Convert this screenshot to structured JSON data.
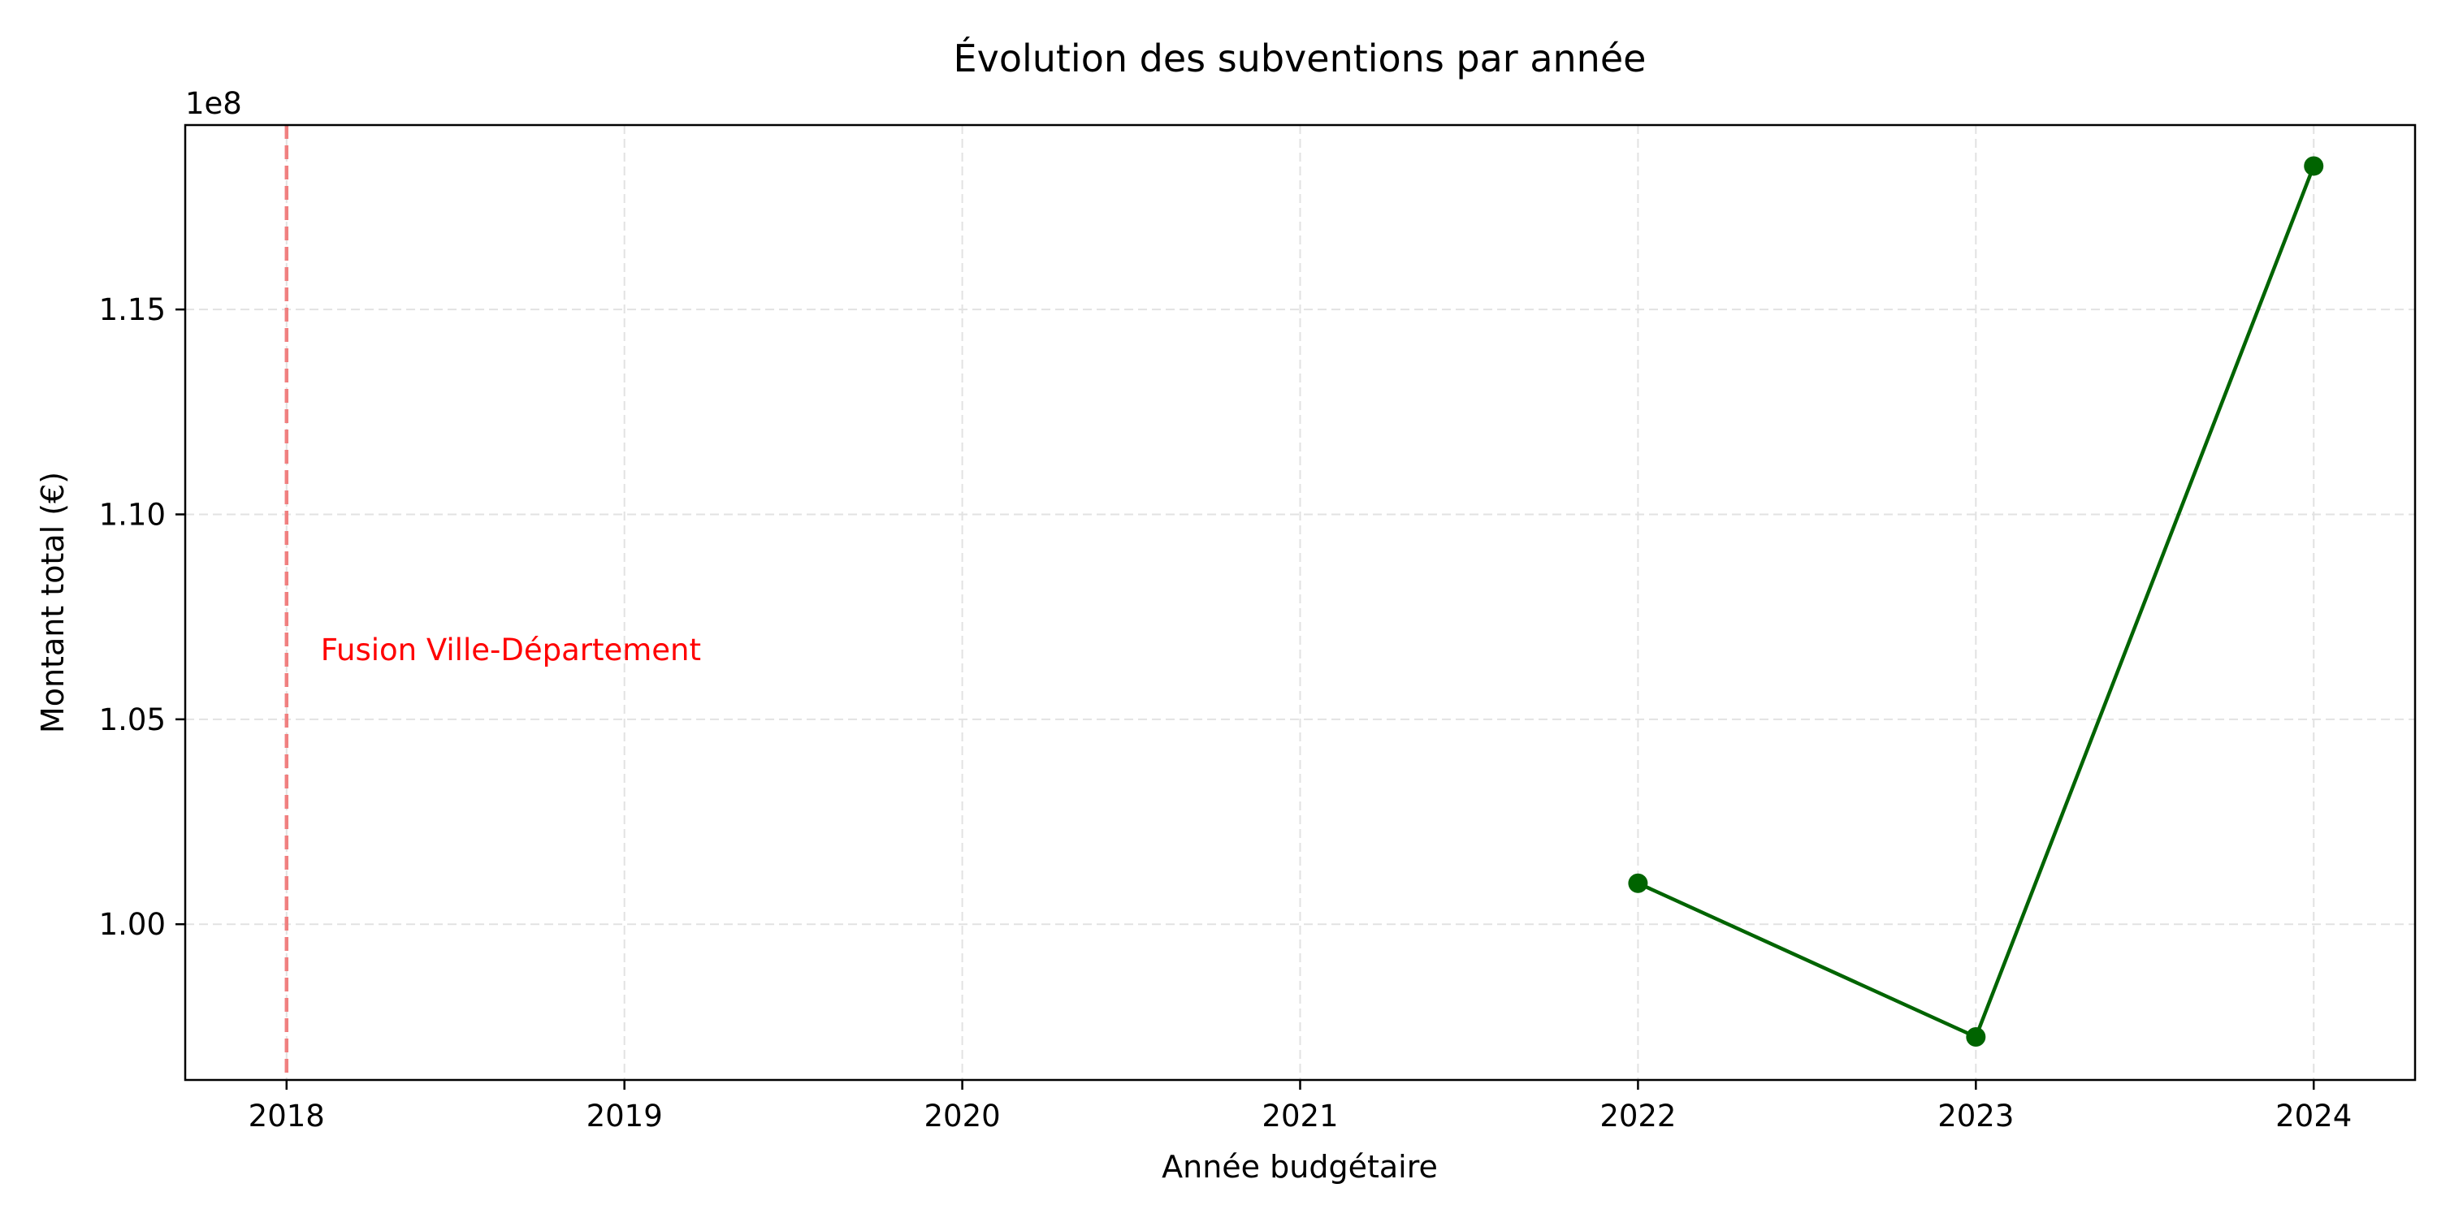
{
  "chart_data": {
    "type": "line",
    "title": "Évolution des subventions par année",
    "xlabel": "Année budgétaire",
    "ylabel": "Montant total (€)",
    "y_offset_label": "1e8",
    "xlim": [
      2017.7,
      2024.3
    ],
    "ylim": [
      0.962,
      1.195
    ],
    "x_ticks": [
      2018,
      2019,
      2020,
      2021,
      2022,
      2023,
      2024
    ],
    "x_tick_labels": [
      "2018",
      "2019",
      "2020",
      "2021",
      "2022",
      "2023",
      "2024"
    ],
    "y_ticks": [
      1.0,
      1.05,
      1.1,
      1.15
    ],
    "y_tick_labels": [
      "1.00",
      "1.05",
      "1.10",
      "1.15"
    ],
    "grid": true,
    "series": [
      {
        "x": [
          2022,
          2023,
          2024
        ],
        "y": [
          1.01,
          0.9725,
          1.185
        ],
        "color": "#006400"
      }
    ],
    "annotations": [
      {
        "type": "vline",
        "x": 2018,
        "color": "#f08080",
        "style": "dashed",
        "label": "Fusion Ville-Département",
        "label_color": "#ff0000",
        "label_y": 1.067
      }
    ]
  }
}
